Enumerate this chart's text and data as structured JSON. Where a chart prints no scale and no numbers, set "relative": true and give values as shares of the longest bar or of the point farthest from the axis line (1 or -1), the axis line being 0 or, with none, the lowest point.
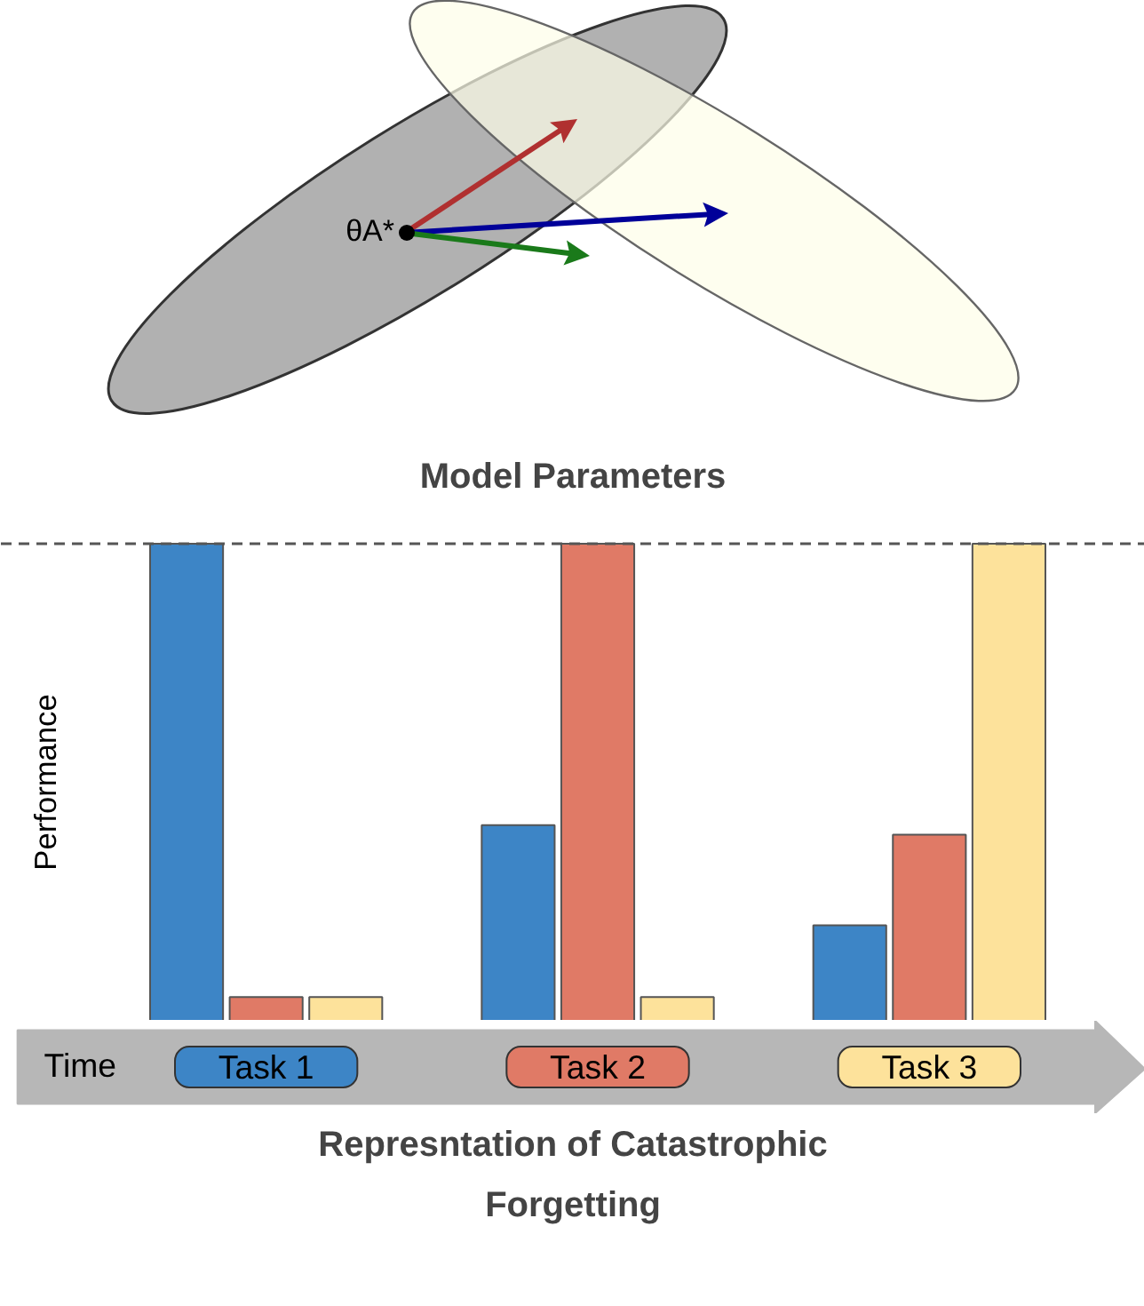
{
  "chart_data": [
    {
      "type": "other",
      "title": "Model Parameters",
      "annotations": [
        "θA*"
      ]
    },
    {
      "type": "bar",
      "title": "Represntation of Catastrophic Forgetting",
      "xlabel": "Time",
      "ylabel": "Performance",
      "relative": true,
      "categories": [
        "Task 1",
        "Task 2",
        "Task 3"
      ],
      "series": [
        {
          "color": "#3d85c6",
          "values": [
            1,
            0.41,
            0.2
          ]
        },
        {
          "color": "#e07a66",
          "values": [
            0.05,
            1,
            0.39
          ]
        },
        {
          "color": "#fde29b",
          "values": [
            0.05,
            0.05,
            1
          ]
        }
      ],
      "ref_lines": [
        {
          "axis": "y",
          "value": 1,
          "color": "#555555",
          "line_style": "dashed"
        }
      ]
    }
  ]
}
